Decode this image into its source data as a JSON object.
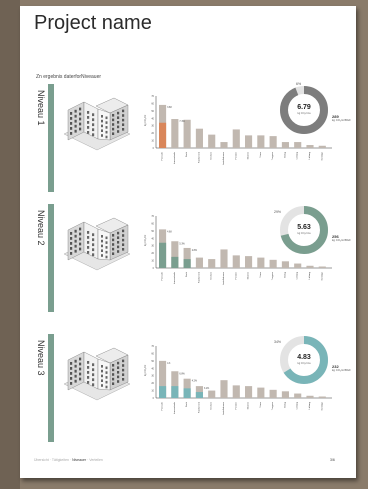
{
  "title": "Project name",
  "subtitle": "Zn ergebnis daterforNiveauer",
  "footer": {
    "items": [
      "Übersicht",
      "Tätigkeiten",
      "Niveauer",
      "Verteilen"
    ],
    "active": 2,
    "page": "3/6"
  },
  "colors": {
    "accent_green": "#7a9e8f",
    "accent_teal": "#79b5b8",
    "accent_orange": "#d9865a",
    "bar_gray": "#c1b8b0",
    "donut_dark": "#7d7d7d"
  },
  "sections": [
    {
      "label": "Niveau 1",
      "donut": {
        "value": "6.79",
        "sub": "kg CO₂/m²a",
        "pct_top": "6%",
        "pct_left": "",
        "color": "#7d7d7d",
        "fraction": 0.94
      },
      "side_value": "289",
      "side_label": "kg CO₂/m²BGF",
      "chart_data": {
        "type": "bar",
        "ylim": [
          0,
          70
        ],
        "yticks": [
          "70",
          "60",
          "50",
          "40",
          "30",
          "20",
          "10",
          "0"
        ],
        "categories": [
          "Fassade",
          "Innenwände",
          "Dach",
          "Fundament",
          "Decken",
          "Installationen",
          "Fenster",
          "Stützen",
          "Türen",
          "Treppen",
          "Belag",
          "Leitung",
          "Lüftung",
          "Sonstige"
        ],
        "values": [
          58,
          39,
          38,
          26,
          18,
          8,
          25,
          17,
          17,
          16,
          8,
          8,
          4,
          3
        ],
        "highlights": [
          {
            "index": 0,
            "value": 34,
            "color": "#d9865a"
          }
        ],
        "annotations": [
          {
            "index": 0,
            "text": "3.68"
          },
          {
            "index": 1,
            "text": "7.4%"
          }
        ]
      }
    },
    {
      "label": "Niveau 2",
      "donut": {
        "value": "5.63",
        "sub": "kg CO₂/m²a",
        "pct_top": "",
        "pct_left": "29%",
        "color": "#7a9e8f",
        "fraction": 0.71
      },
      "side_value": "256",
      "side_label": "kg CO₂/m²BGF",
      "chart_data": {
        "type": "bar",
        "ylim": [
          0,
          70
        ],
        "yticks": [
          "70",
          "60",
          "50",
          "40",
          "30",
          "20",
          "10",
          "0"
        ],
        "categories": [
          "Fassade",
          "Innenwände",
          "Dach",
          "Fundament",
          "Decken",
          "Installationen",
          "Fenster",
          "Stützen",
          "Türen",
          "Treppen",
          "Belag",
          "Leitung",
          "Lüftung",
          "Sonstige"
        ],
        "values": [
          52,
          36,
          27,
          14,
          12,
          25,
          17,
          16,
          14,
          11,
          9,
          6,
          3,
          2
        ],
        "highlights": [
          {
            "index": 0,
            "value": 34,
            "color": "#7a9e8f"
          },
          {
            "index": 1,
            "value": 15,
            "color": "#7a9e8f"
          },
          {
            "index": 2,
            "value": 12,
            "color": "#7a9e8f"
          }
        ],
        "annotations": [
          {
            "index": 0,
            "text": "4.68"
          },
          {
            "index": 1,
            "text": "5.3%"
          },
          {
            "index": 2,
            "text": "2.8%"
          }
        ]
      }
    },
    {
      "label": "Niveau 3",
      "donut": {
        "value": "4.83",
        "sub": "kg CO₂/m²a",
        "pct_top": "",
        "pct_left": "34%",
        "color": "#79b5b8",
        "fraction": 0.66
      },
      "side_value": "232",
      "side_label": "kg CO₂/m²BGF",
      "chart_data": {
        "type": "bar",
        "ylim": [
          0,
          70
        ],
        "yticks": [
          "70",
          "60",
          "50",
          "40",
          "30",
          "20",
          "10",
          "0"
        ],
        "categories": [
          "Fassade",
          "Innenwände",
          "Dach",
          "Fundament",
          "Decken",
          "Installationen",
          "Fenster",
          "Stützen",
          "Türen",
          "Treppen",
          "Belag",
          "Leitung",
          "Lüftung",
          "Sonstige"
        ],
        "values": [
          50,
          36,
          26,
          16,
          10,
          24,
          17,
          16,
          14,
          11,
          9,
          6,
          3,
          2
        ],
        "highlights": [
          {
            "index": 0,
            "value": 16,
            "color": "#79b5b8"
          },
          {
            "index": 1,
            "value": 16,
            "color": "#79b5b8"
          },
          {
            "index": 2,
            "value": 13,
            "color": "#79b5b8"
          },
          {
            "index": 3,
            "value": 8,
            "color": "#79b5b8"
          }
        ],
        "annotations": [
          {
            "index": 0,
            "text": "4.3"
          },
          {
            "index": 1,
            "text": "6.8%"
          },
          {
            "index": 2,
            "text": "4.2%"
          },
          {
            "index": 3,
            "text": "3.1%"
          }
        ]
      }
    }
  ]
}
